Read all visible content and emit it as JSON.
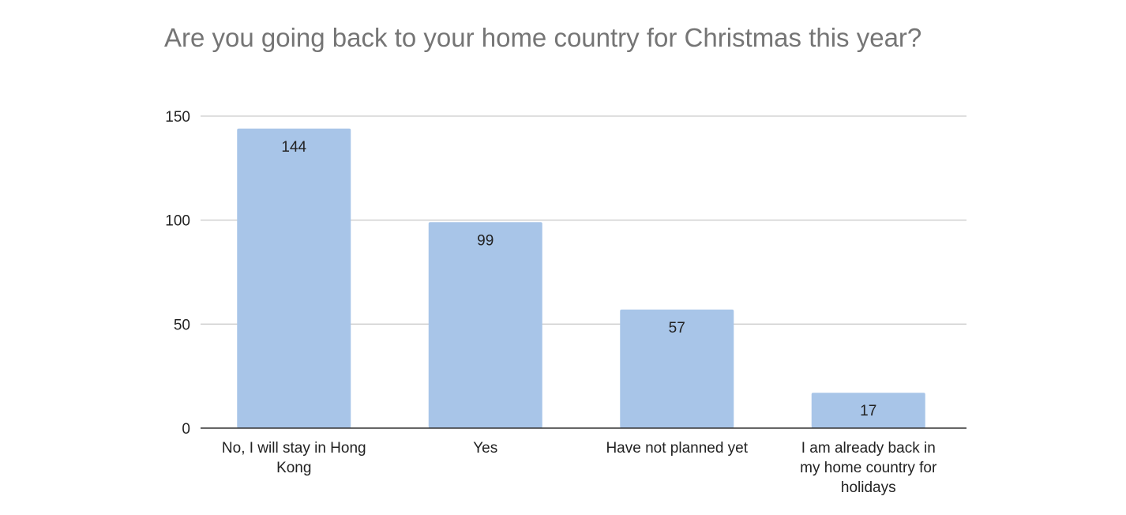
{
  "chart_data": {
    "type": "bar",
    "title": "Are you going back to your home country for Christmas this year?",
    "xlabel": "",
    "ylabel": "",
    "categories": [
      "No, I will stay in Hong Kong",
      "Yes",
      "Have not planned yet",
      "I am already back in my home country for holidays"
    ],
    "values": [
      144,
      99,
      57,
      17
    ],
    "ylim": [
      0,
      150
    ],
    "yticks": [
      0,
      50,
      100,
      150
    ],
    "grid": true,
    "legend": "none",
    "colors": {
      "bar": "#a8c5e8",
      "grid": "#cccccc",
      "axis": "#333333",
      "title": "#757575"
    }
  }
}
